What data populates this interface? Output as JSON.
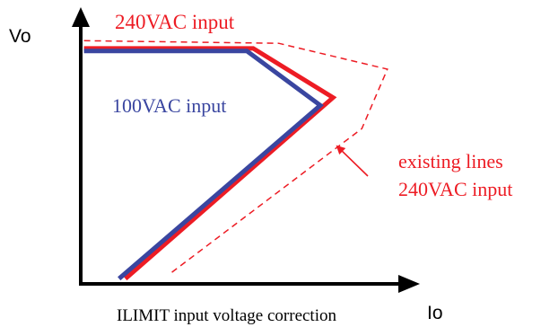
{
  "chart_data": {
    "type": "line",
    "title": "",
    "xlabel": "Io",
    "ylabel": "Vo",
    "caption": "ILIMIT input voltage correction",
    "grid": false,
    "legend": "none",
    "axes": {
      "x_range": [
        0,
        10
      ],
      "y_range": [
        0,
        10
      ]
    },
    "series": [
      {
        "name": "240VAC input",
        "color": "#ed1c24",
        "style": "solid",
        "points": [
          {
            "x": 0.1,
            "y": 9.1
          },
          {
            "x": 5.4,
            "y": 9.1
          },
          {
            "x": 7.9,
            "y": 7.2
          },
          {
            "x": 1.4,
            "y": 0.2
          }
        ]
      },
      {
        "name": "100VAC input",
        "color": "#3a46a0",
        "style": "solid",
        "points": [
          {
            "x": 0.1,
            "y": 9.0
          },
          {
            "x": 5.2,
            "y": 9.0
          },
          {
            "x": 7.5,
            "y": 6.9
          },
          {
            "x": 1.2,
            "y": 0.2
          }
        ]
      },
      {
        "name": "existing lines 240VAC input",
        "color": "#ed1c24",
        "style": "dashed",
        "points": [
          {
            "x": 0.1,
            "y": 9.4
          },
          {
            "x": 6.2,
            "y": 9.3
          },
          {
            "x": 9.6,
            "y": 8.3
          },
          {
            "x": 8.8,
            "y": 6.0
          },
          {
            "x": 2.8,
            "y": 0.4
          }
        ]
      }
    ],
    "annotations": {
      "line_240": "240VAC input",
      "line_100": "100VAC input",
      "existing_line1": "existing lines",
      "existing_line2": "240VAC input"
    },
    "colors": {
      "axis": "#000000",
      "red": "#ed1c24",
      "blue": "#3a46a0"
    }
  }
}
